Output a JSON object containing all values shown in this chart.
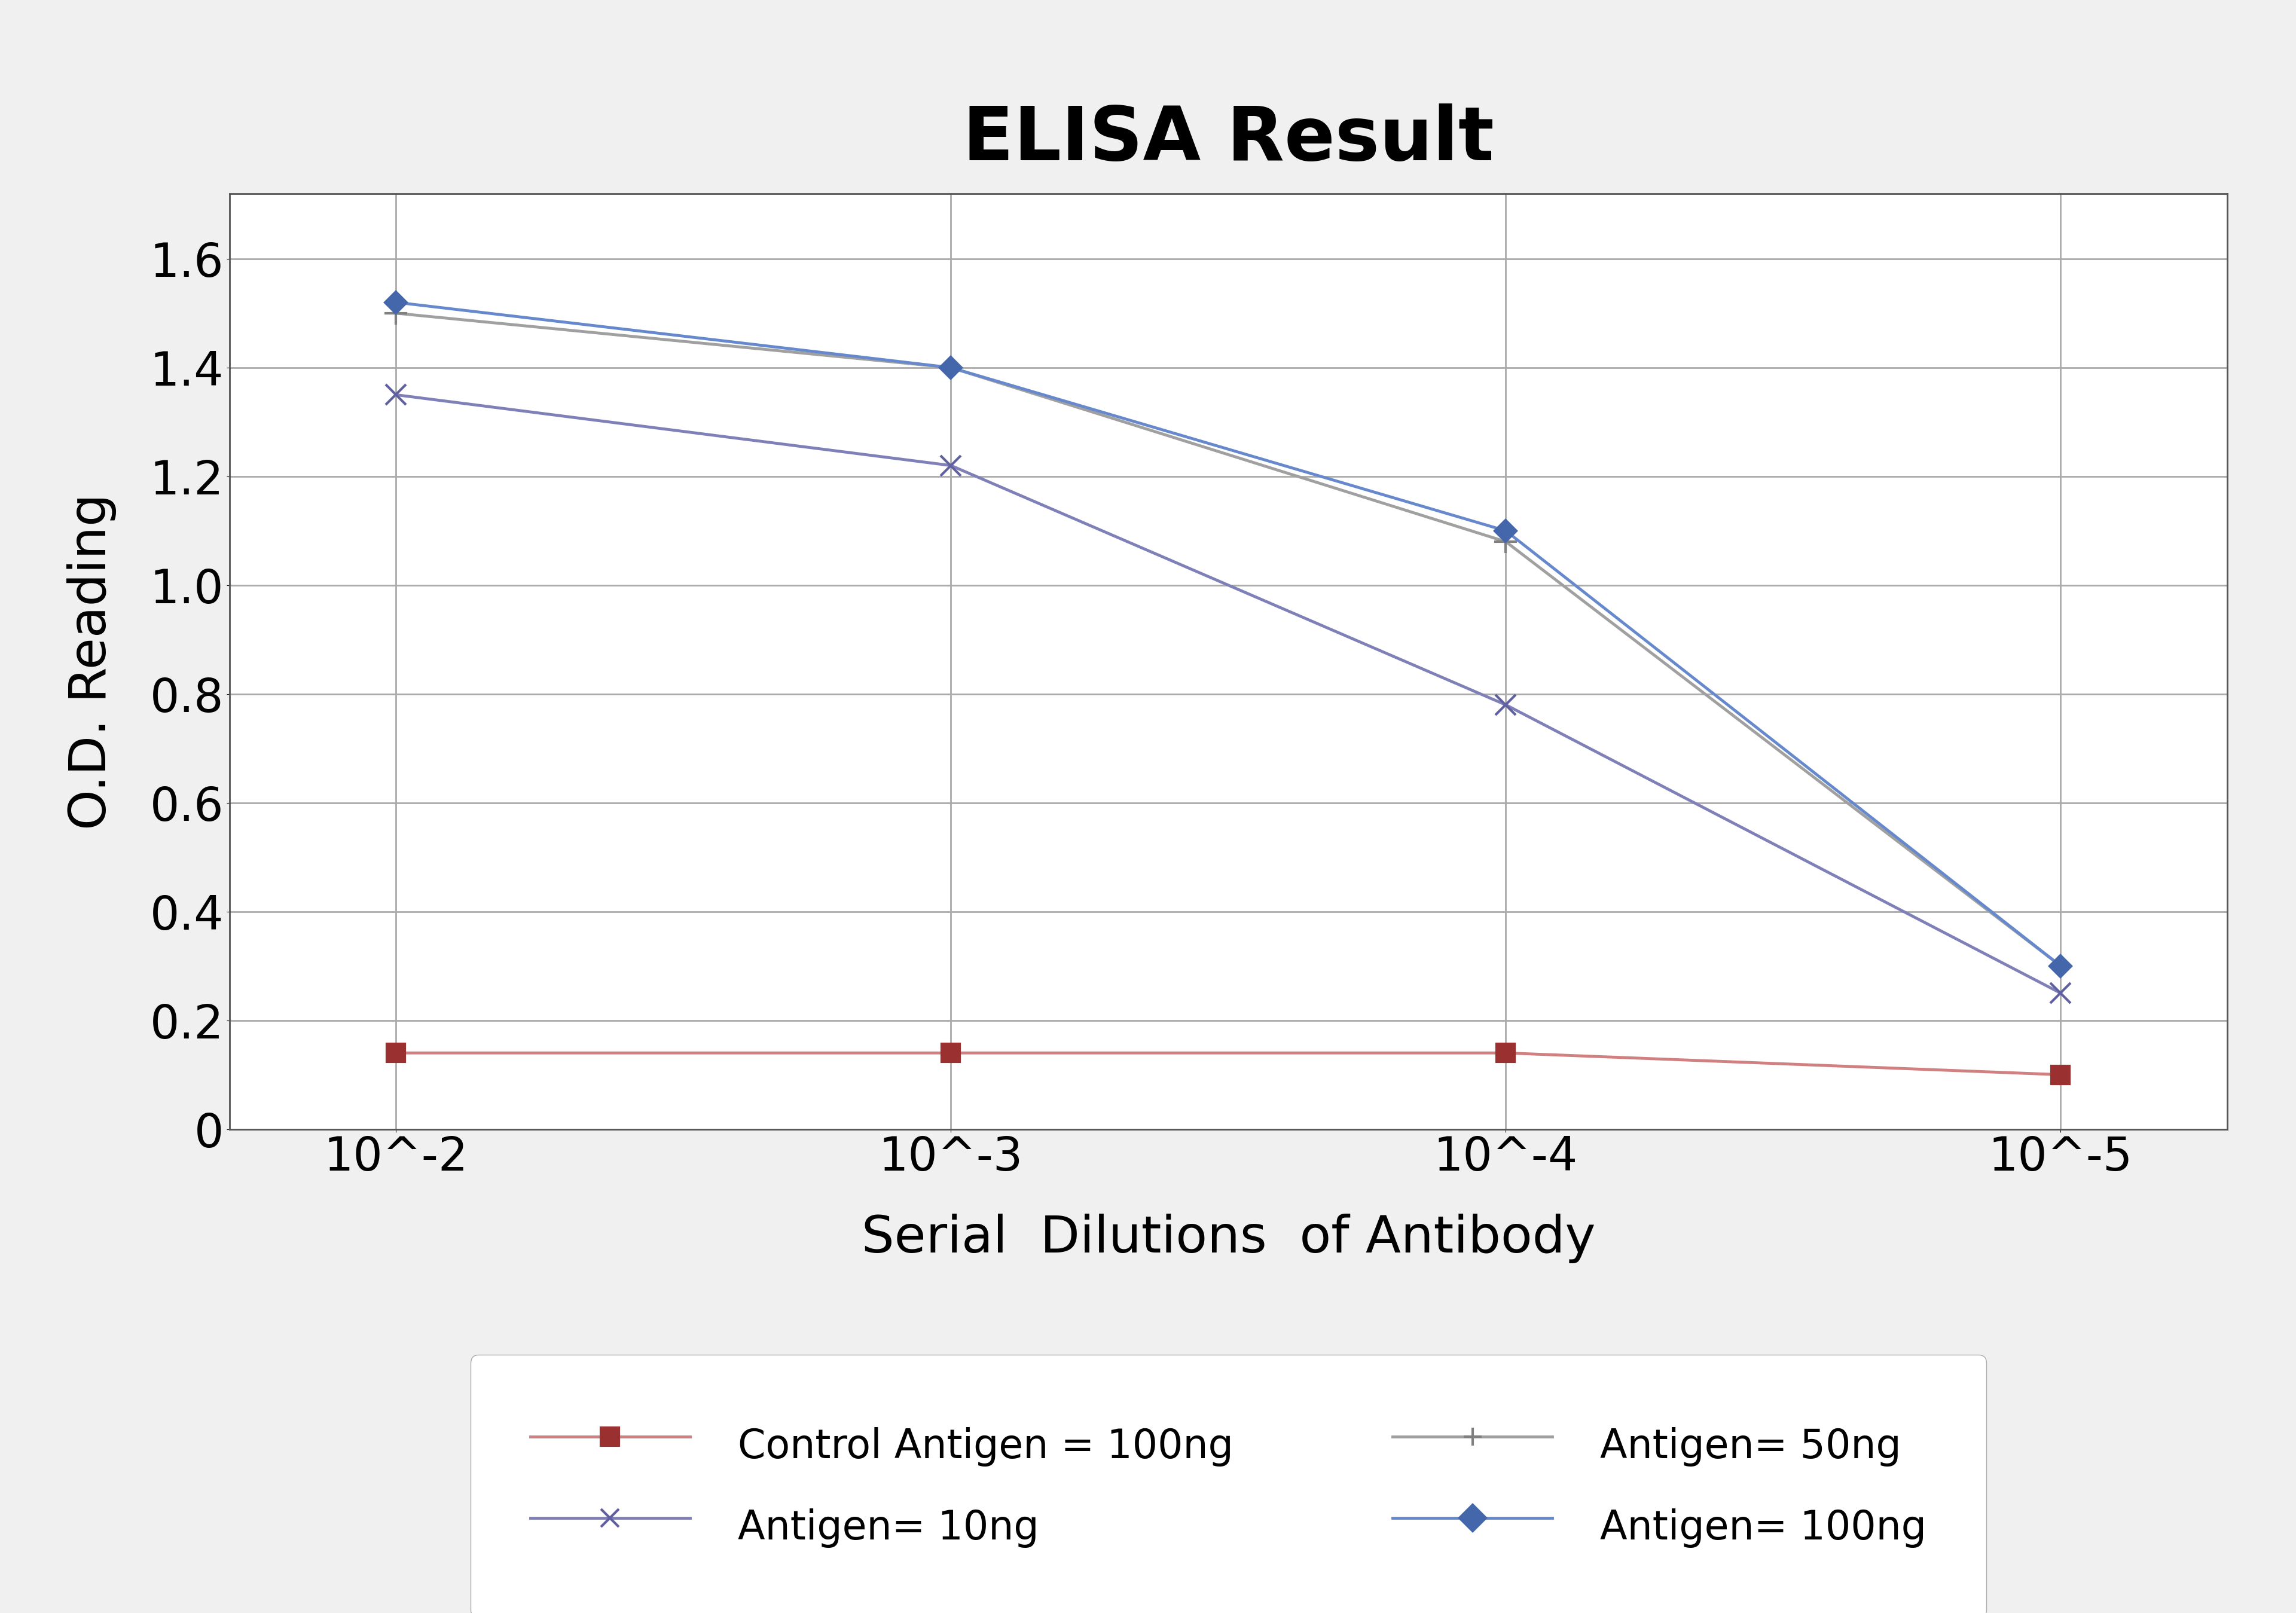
{
  "title": "ELISA Result",
  "xlabel": "Serial  Dilutions  of Antibody",
  "ylabel": "O.D. Reading",
  "x_positions": [
    1,
    2,
    3,
    4
  ],
  "x_labels": [
    "10^-2",
    "10^-3",
    "10^-4",
    "10^-5"
  ],
  "series": [
    {
      "label": "Control Antigen = 100ng",
      "color": "#9B3030",
      "line_color": "#D08080",
      "marker": "s",
      "linestyle": "-",
      "linewidth": 3.5,
      "markersize": 22,
      "values": [
        0.14,
        0.14,
        0.14,
        0.1
      ]
    },
    {
      "label": "Antigen= 10ng",
      "color": "#6060A0",
      "line_color": "#8080B8",
      "marker": "x",
      "linestyle": "-",
      "linewidth": 3.5,
      "markersize": 24,
      "values": [
        1.35,
        1.22,
        0.78,
        0.25
      ]
    },
    {
      "label": "Antigen= 50ng",
      "color": "#808080",
      "line_color": "#A0A0A0",
      "marker": "+",
      "linestyle": "-",
      "linewidth": 3.5,
      "markersize": 28,
      "values": [
        1.5,
        1.4,
        1.08,
        0.3
      ]
    },
    {
      "label": "Antigen= 100ng",
      "color": "#4466AA",
      "line_color": "#6688CC",
      "marker": "D",
      "linestyle": "-",
      "linewidth": 3.5,
      "markersize": 18,
      "values": [
        1.52,
        1.4,
        1.1,
        0.3
      ]
    }
  ],
  "ylim": [
    0,
    1.72
  ],
  "yticks": [
    0,
    0.2,
    0.4,
    0.6,
    0.8,
    1.0,
    1.2,
    1.4,
    1.6
  ],
  "background_color": "#f0f0f0",
  "plot_bg_color": "#ffffff",
  "title_fontsize": 90,
  "axis_label_fontsize": 62,
  "tick_fontsize": 56,
  "legend_fontsize": 48
}
